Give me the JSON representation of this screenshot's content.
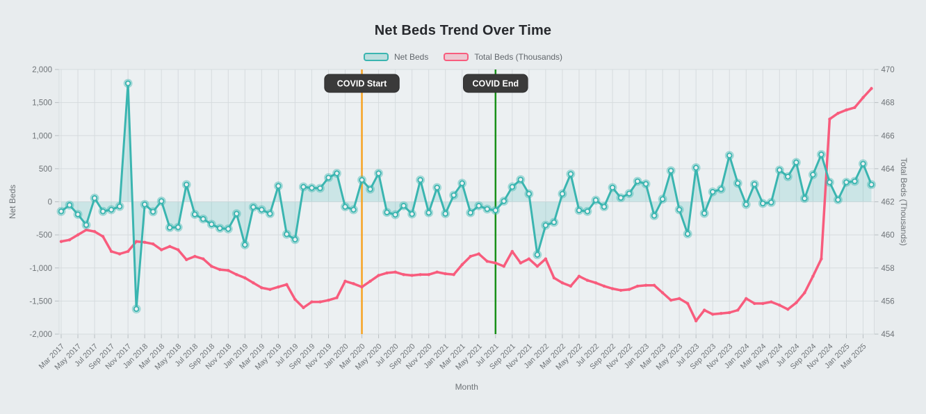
{
  "title": "Net Beds Trend Over Time",
  "legend": {
    "items": [
      {
        "label": "Net Beds",
        "color": "#3ab5b0"
      },
      {
        "label": "Total Beds (Thousands)",
        "color": "#f85c7d"
      }
    ]
  },
  "annotations": [
    {
      "label": "COVID Start",
      "x_index": 36,
      "month": "Mar 2020",
      "line_color": "#f7a321",
      "chip_bg": "#3a3a3a",
      "chip_text_color": "#ffffff"
    },
    {
      "label": "COVID End",
      "x_index": 52,
      "month": "Jul 2021",
      "line_color": "#189018",
      "chip_bg": "#3a3a3a",
      "chip_text_color": "#ffffff"
    }
  ],
  "chart_data": {
    "type": "line",
    "title": "Net Beds Trend Over Time",
    "xlabel": "Month",
    "grid": true,
    "legend_position": "top",
    "x_tick_every": 2,
    "left_axis": {
      "label": "Net Beds",
      "min": -2000,
      "max": 2000,
      "tick_step": 500
    },
    "right_axis": {
      "label": "Total Beds (Thousands)",
      "min": 454,
      "max": 470,
      "tick_step": 2
    },
    "x": [
      "Mar 2017",
      "Apr 2017",
      "May 2017",
      "Jun 2017",
      "Jul 2017",
      "Aug 2017",
      "Sep 2017",
      "Oct 2017",
      "Nov 2017",
      "Dec 2017",
      "Jan 2018",
      "Feb 2018",
      "Mar 2018",
      "Apr 2018",
      "May 2018",
      "Jun 2018",
      "Jul 2018",
      "Aug 2018",
      "Sep 2018",
      "Oct 2018",
      "Nov 2018",
      "Dec 2018",
      "Jan 2019",
      "Feb 2019",
      "Mar 2019",
      "Apr 2019",
      "May 2019",
      "Jun 2019",
      "Jul 2019",
      "Aug 2019",
      "Sep 2019",
      "Oct 2019",
      "Nov 2019",
      "Dec 2019",
      "Jan 2020",
      "Feb 2020",
      "Mar 2020",
      "Apr 2020",
      "May 2020",
      "Jun 2020",
      "Jul 2020",
      "Aug 2020",
      "Sep 2020",
      "Oct 2020",
      "Nov 2020",
      "Dec 2020",
      "Jan 2021",
      "Feb 2021",
      "Mar 2021",
      "Apr 2021",
      "May 2021",
      "Jun 2021",
      "Jul 2021",
      "Aug 2021",
      "Sep 2021",
      "Oct 2021",
      "Nov 2021",
      "Dec 2021",
      "Jan 2022",
      "Feb 2022",
      "Mar 2022",
      "Apr 2022",
      "May 2022",
      "Jun 2022",
      "Jul 2022",
      "Aug 2022",
      "Sep 2022",
      "Oct 2022",
      "Nov 2022",
      "Dec 2022",
      "Jan 2023",
      "Feb 2023",
      "Mar 2023",
      "Apr 2023",
      "May 2023",
      "Jun 2023",
      "Jul 2023",
      "Aug 2023",
      "Sep 2023",
      "Oct 2023",
      "Nov 2023",
      "Dec 2023",
      "Jan 2024",
      "Feb 2024",
      "Mar 2024",
      "Apr 2024",
      "May 2024",
      "Jun 2024",
      "Jul 2024",
      "Aug 2024",
      "Sep 2024",
      "Oct 2024",
      "Nov 2024",
      "Dec 2024",
      "Jan 2025",
      "Feb 2025",
      "Mar 2025",
      "Apr 2025"
    ],
    "series": [
      {
        "name": "Net Beds",
        "axis": "left",
        "color": "#3ab5b0",
        "fill_to_zero": true,
        "fill_opacity": 0.18,
        "marker": "circle",
        "values": [
          -145,
          -50,
          -190,
          -350,
          55,
          -145,
          -120,
          -70,
          1790,
          -1620,
          -40,
          -150,
          10,
          -390,
          -385,
          260,
          -190,
          -260,
          -340,
          -400,
          -410,
          -180,
          -650,
          -80,
          -120,
          -180,
          240,
          -490,
          -570,
          225,
          210,
          205,
          365,
          430,
          -75,
          -120,
          330,
          190,
          430,
          -160,
          -195,
          -60,
          -185,
          330,
          -165,
          215,
          -180,
          100,
          280,
          -165,
          -60,
          -110,
          -130,
          10,
          225,
          335,
          120,
          -800,
          -355,
          -310,
          120,
          420,
          -130,
          -145,
          25,
          -75,
          215,
          60,
          125,
          310,
          270,
          -210,
          40,
          470,
          -120,
          -485,
          515,
          -175,
          150,
          190,
          700,
          280,
          -40,
          265,
          -25,
          -10,
          480,
          380,
          595,
          50,
          410,
          715,
          295,
          30,
          295,
          310,
          575,
          260
        ]
      },
      {
        "name": "Total Beds (Thousands)",
        "axis": "right",
        "color": "#f85c7d",
        "marker": "dot",
        "values": [
          459.6,
          459.7,
          460.0,
          460.3,
          460.2,
          459.9,
          459.0,
          458.85,
          459.0,
          459.6,
          459.55,
          459.45,
          459.1,
          459.3,
          459.1,
          458.5,
          458.7,
          458.55,
          458.1,
          457.9,
          457.85,
          457.6,
          457.4,
          457.1,
          456.8,
          456.7,
          456.85,
          457.0,
          456.1,
          455.6,
          455.95,
          455.95,
          456.05,
          456.2,
          457.2,
          457.05,
          456.85,
          457.2,
          457.55,
          457.7,
          457.75,
          457.6,
          457.55,
          457.6,
          457.6,
          457.75,
          457.65,
          457.6,
          458.2,
          458.7,
          458.85,
          458.4,
          458.3,
          458.1,
          459.0,
          458.3,
          458.55,
          458.1,
          458.55,
          457.4,
          457.1,
          456.9,
          457.5,
          457.25,
          457.1,
          456.9,
          456.75,
          456.65,
          456.7,
          456.9,
          456.95,
          456.95,
          456.5,
          456.05,
          456.15,
          455.85,
          454.8,
          455.45,
          455.2,
          455.25,
          455.3,
          455.45,
          456.15,
          455.85,
          455.85,
          455.95,
          455.75,
          455.5,
          455.9,
          456.5,
          457.5,
          458.55,
          467.0,
          467.35,
          467.55,
          467.7,
          468.3,
          468.85
        ]
      }
    ]
  },
  "style": {
    "page_bg": "#e8ecee",
    "plot_bg": "#ecf0f2",
    "grid_color": "#d6dbde",
    "tick_text_color": "#6e7377",
    "axis_title_color": "#6e7377",
    "title_color": "#27292d"
  }
}
